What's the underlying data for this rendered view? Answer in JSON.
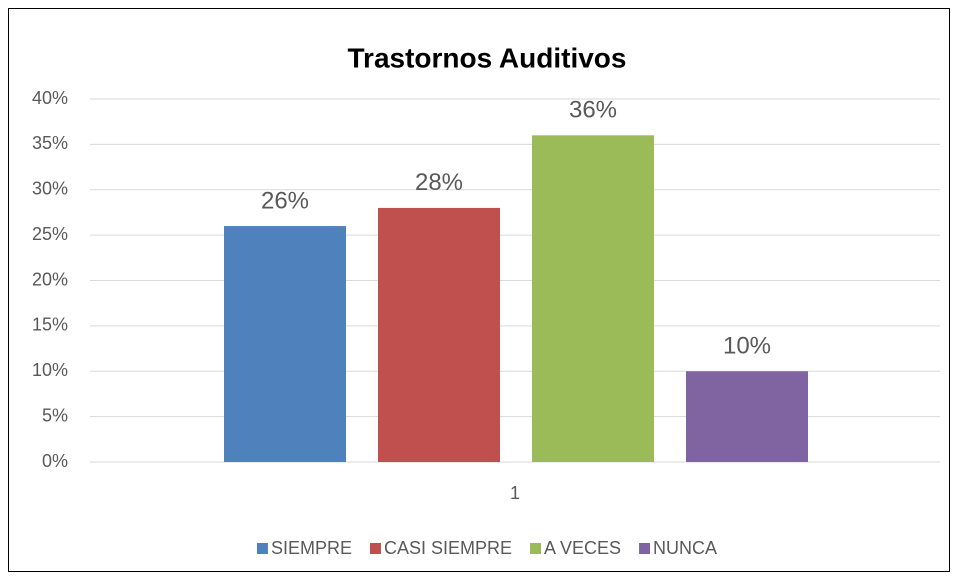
{
  "chart_data": {
    "type": "bar",
    "title": "Trastornos Auditivos",
    "categories": [
      "1"
    ],
    "series": [
      {
        "name": "SIEMPRE",
        "color": "#4f81bd",
        "values": [
          26
        ],
        "value_labels": [
          "26%"
        ]
      },
      {
        "name": "CASI SIEMPRE",
        "color": "#c0504d",
        "values": [
          28
        ],
        "value_labels": [
          "28%"
        ]
      },
      {
        "name": "A VECES",
        "color": "#9bbb59",
        "values": [
          36
        ],
        "value_labels": [
          "36%"
        ]
      },
      {
        "name": "NUNCA",
        "color": "#8064a2",
        "values": [
          10
        ],
        "value_labels": [
          "10%"
        ]
      }
    ],
    "ylim": [
      0,
      40
    ],
    "yticks": [
      {
        "value": 0,
        "label": "0%"
      },
      {
        "value": 5,
        "label": "5%"
      },
      {
        "value": 10,
        "label": "10%"
      },
      {
        "value": 15,
        "label": "15%"
      },
      {
        "value": 20,
        "label": "20%"
      },
      {
        "value": 25,
        "label": "25%"
      },
      {
        "value": 30,
        "label": "30%"
      },
      {
        "value": 35,
        "label": "35%"
      },
      {
        "value": 40,
        "label": "40%"
      }
    ],
    "grid": true,
    "legend": "bottom"
  }
}
